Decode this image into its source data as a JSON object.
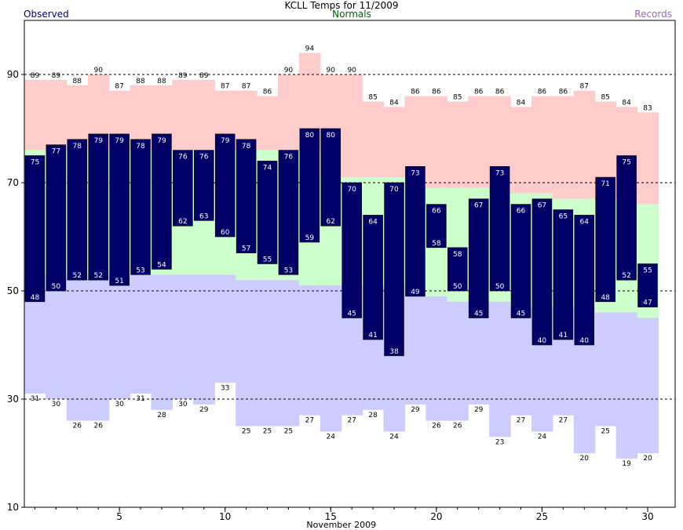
{
  "chart_data": {
    "type": "bar",
    "title": "KCLL Temps for 11/2009",
    "xlabel": "November 2009",
    "ylabel": "",
    "ylim": [
      10,
      100
    ],
    "xlim": [
      0.5,
      31.3
    ],
    "grid": "dashed horizontal at 30, 50, 70, 90",
    "legend": "top",
    "legend_labels": {
      "observed": "Observed",
      "normals": "Normals",
      "records": "Records"
    },
    "yticks": [
      10,
      30,
      50,
      70,
      90
    ],
    "xticks": [
      5,
      10,
      15,
      20,
      25,
      30
    ],
    "days": [
      1,
      2,
      3,
      4,
      5,
      6,
      7,
      8,
      9,
      10,
      11,
      12,
      13,
      14,
      15,
      16,
      17,
      18,
      19,
      20,
      21,
      22,
      23,
      24,
      25,
      26,
      27,
      28,
      29,
      30
    ],
    "series": [
      {
        "name": "Records",
        "role": "record_high",
        "values": [
          89,
          89,
          88,
          90,
          87,
          88,
          88,
          89,
          89,
          87,
          87,
          86,
          90,
          94,
          90,
          90,
          85,
          84,
          86,
          86,
          85,
          86,
          86,
          84,
          86,
          86,
          87,
          85,
          84,
          83
        ]
      },
      {
        "name": "Records",
        "role": "record_low",
        "values": [
          31,
          30,
          26,
          26,
          30,
          31,
          28,
          30,
          29,
          33,
          25,
          25,
          25,
          27,
          24,
          27,
          28,
          24,
          29,
          26,
          26,
          29,
          23,
          27,
          24,
          27,
          20,
          25,
          19,
          20
        ]
      },
      {
        "name": "Normals",
        "role": "normal_high",
        "values": [
          76,
          76,
          76,
          76,
          76,
          76,
          76,
          76,
          76,
          76,
          76,
          76,
          76,
          76,
          71,
          71,
          71,
          71,
          71,
          69,
          69,
          69,
          68,
          68,
          68,
          67,
          67,
          67,
          67,
          66
        ]
      },
      {
        "name": "Normals",
        "role": "normal_low",
        "values": [
          53,
          53,
          53,
          53,
          53,
          53,
          53,
          53,
          53,
          53,
          52,
          52,
          52,
          51,
          51,
          51,
          51,
          51,
          49,
          49,
          48,
          48,
          48,
          47,
          47,
          47,
          47,
          46,
          46,
          45
        ]
      },
      {
        "name": "Observed",
        "role": "observed_high",
        "values": [
          75,
          77,
          78,
          79,
          79,
          78,
          79,
          76,
          76,
          79,
          78,
          74,
          76,
          80,
          80,
          70,
          64,
          70,
          73,
          66,
          58,
          67,
          73,
          66,
          67,
          65,
          64,
          71,
          75,
          55
        ]
      },
      {
        "name": "Observed",
        "role": "observed_low",
        "values": [
          48,
          50,
          52,
          52,
          51,
          53,
          54,
          62,
          63,
          60,
          57,
          55,
          53,
          59,
          62,
          45,
          41,
          38,
          49,
          58,
          50,
          45,
          50,
          45,
          40,
          41,
          40,
          48,
          52,
          47
        ]
      }
    ],
    "colors": {
      "record_band": "#ffcccc",
      "normal_band": "#ccffcc",
      "normal_low_band": "#ccccff",
      "observed_bar": "#000066",
      "observed_label": "#ffffff",
      "gridline": "#000000",
      "axis": "#000000",
      "observed_text": "#000080",
      "normals_text": "#006400",
      "records_text": "#9966cc"
    }
  }
}
